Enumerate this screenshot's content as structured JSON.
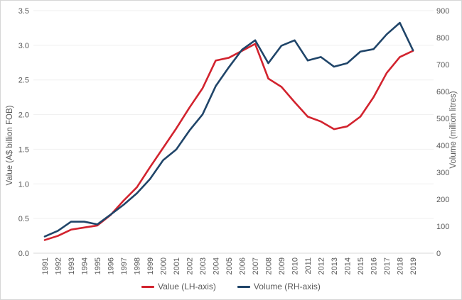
{
  "chart_data": {
    "type": "line",
    "categories": [
      "1991",
      "1992",
      "1993",
      "1994",
      "1995",
      "1996",
      "1997",
      "1998",
      "1999",
      "2000",
      "2001",
      "2002",
      "2003",
      "2004",
      "2005",
      "2006",
      "2007",
      "2008",
      "2009",
      "2010",
      "2011",
      "2012",
      "2013",
      "2014",
      "2015",
      "2016",
      "2017",
      "2018",
      "2019"
    ],
    "series": [
      {
        "name": "Value (LH-axis)",
        "axis": "left",
        "color": "#d2232e",
        "values": [
          0.19,
          0.25,
          0.34,
          0.37,
          0.4,
          0.55,
          0.76,
          0.95,
          1.24,
          1.52,
          1.8,
          2.1,
          2.38,
          2.78,
          2.82,
          2.92,
          3.02,
          2.52,
          2.4,
          2.18,
          1.97,
          1.9,
          1.79,
          1.83,
          1.97,
          2.25,
          2.6,
          2.83,
          2.92
        ]
      },
      {
        "name": "Volume (RH-axis)",
        "axis": "right",
        "color": "#204569",
        "values": [
          62,
          83,
          117,
          117,
          107,
          143,
          180,
          222,
          275,
          345,
          385,
          455,
          515,
          620,
          690,
          755,
          790,
          705,
          770,
          790,
          715,
          728,
          692,
          705,
          748,
          757,
          812,
          855,
          753
        ]
      }
    ],
    "left_axis": {
      "label": "Value (A$ billion FOB)",
      "min": 0,
      "max": 3.5,
      "ticks": [
        "0.0",
        "0.5",
        "1.0",
        "1.5",
        "2.0",
        "2.5",
        "3.0",
        "3.5"
      ]
    },
    "right_axis": {
      "label": "Volume (million litres)",
      "min": 0,
      "max": 900,
      "ticks": [
        "0",
        "100",
        "200",
        "300",
        "400",
        "500",
        "600",
        "700",
        "800",
        "900"
      ]
    },
    "title": "",
    "grid": true,
    "legend_position": "bottom",
    "colors": {
      "axis_text": "#595959",
      "gridline": "#efefef",
      "baseline": "#d9d9d9",
      "background": "#ffffff"
    }
  }
}
